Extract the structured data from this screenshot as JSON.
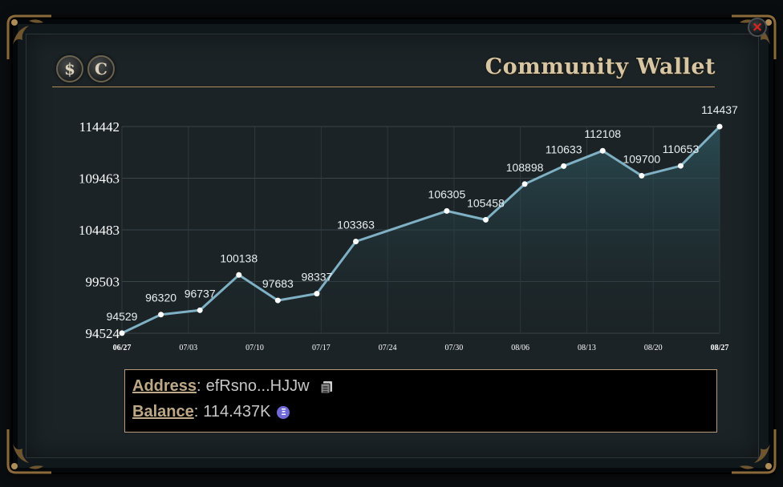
{
  "window": {
    "title": "Community Wallet",
    "close_label": "×"
  },
  "toolbar": {
    "coin_buttons": [
      {
        "label": "$",
        "icon": "dollar-coin-icon"
      },
      {
        "label": "C",
        "icon": "c-coin-icon"
      }
    ]
  },
  "info": {
    "address_key": "Address",
    "address_value": "efRsno...HJJw",
    "balance_key": "Balance",
    "balance_value": "114.437K",
    "separator": ":",
    "token_icon_glyph": "Ξ"
  },
  "colors": {
    "accent": "#b08c57",
    "line": "#7fb0c4",
    "close": "#e0241b",
    "token": "#6f6ad8"
  },
  "chart_data": {
    "type": "area",
    "x": [
      "06/27",
      "07/01",
      "07/05",
      "07/08",
      "07/12",
      "07/16",
      "07/20",
      "07/30",
      "08/02",
      "08/06",
      "08/09",
      "08/13",
      "08/16",
      "08/20",
      "08/27"
    ],
    "x_days": [
      0,
      6,
      12,
      18,
      24,
      30,
      36,
      50,
      56,
      62,
      68,
      74,
      80,
      86,
      92
    ],
    "values": [
      94529,
      96320,
      96737,
      100138,
      97683,
      98337,
      103363,
      106305,
      105458,
      108898,
      110633,
      112108,
      109700,
      110653,
      114437
    ],
    "x_ticks": [
      "06/27",
      "07/03",
      "07/10",
      "07/17",
      "07/24",
      "07/30",
      "08/06",
      "08/13",
      "08/20",
      "08/27"
    ],
    "y_ticks": [
      "114442",
      "109463",
      "104483",
      "99503",
      "94524"
    ],
    "ylim": [
      94524,
      114442
    ],
    "grid": true,
    "title": "",
    "xlabel": "",
    "ylabel": ""
  }
}
